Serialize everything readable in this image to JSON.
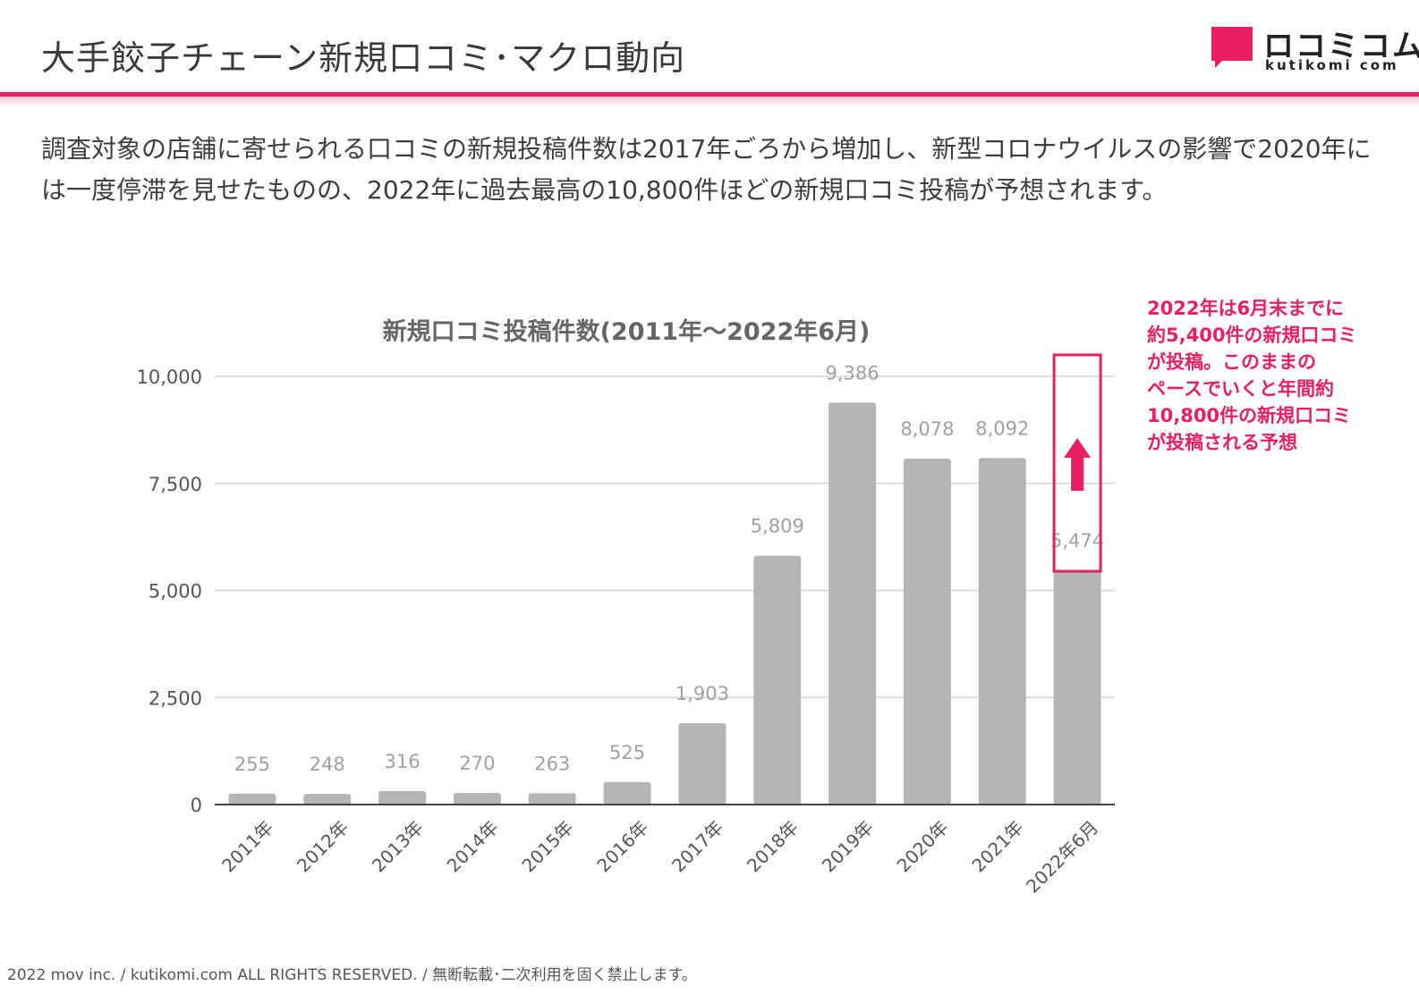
{
  "page": {
    "title": "大手餃子チェーン新規口コミ･マクロ動向",
    "description": "調査対象の店舗に寄せられる口コミの新規投稿件数は2017年ごろから増加し、新型コロナウイルスの影響で2020年には一度停滞を見せたものの、2022年に過去最高の10,800件ほどの新規口コミ投稿が予想されます。",
    "annotation": "2022年は6月末までに\n約5,400件の新規口コミ\nが投稿。このままの\nペースでいくと年間約\n10,800件の新規口コミ\nが投稿される予想",
    "footer": "2022 mov inc. / kutikomi.com ALL RIGHTS RESERVED. / 無断転載･二次利用を固く禁止します。"
  },
  "logo": {
    "text": "ロコミコム",
    "sub": "kutikomi com"
  },
  "colors": {
    "accent": "#e91e63",
    "bar": "#b5b5b5",
    "grid": "#d6d6d6",
    "axis_text": "#555555",
    "value_label": "#a0a0a0",
    "chart_title": "#666666"
  },
  "chart_data": {
    "type": "bar",
    "title": "新規口コミ投稿件数(2011年〜2022年6月)",
    "xlabel": "",
    "ylabel": "",
    "categories": [
      "2011年",
      "2012年",
      "2013年",
      "2014年",
      "2015年",
      "2016年",
      "2017年",
      "2018年",
      "2019年",
      "2020年",
      "2021年",
      "2022年6月"
    ],
    "values": [
      255,
      248,
      316,
      270,
      263,
      525,
      1903,
      5809,
      9386,
      8078,
      8092,
      5474
    ],
    "value_labels": [
      "255",
      "248",
      "316",
      "270",
      "263",
      "525",
      "1,903",
      "5,809",
      "9,386",
      "8,078",
      "8,092",
      "5,474"
    ],
    "yticks": [
      0,
      2500,
      5000,
      7500,
      10000
    ],
    "ytick_labels": [
      "0",
      "2,500",
      "5,000",
      "7,500",
      "10,000"
    ],
    "ylim": [
      0,
      10000
    ],
    "grid": true,
    "highlight": {
      "category": "2022年6月",
      "marker": "up-arrow"
    }
  }
}
